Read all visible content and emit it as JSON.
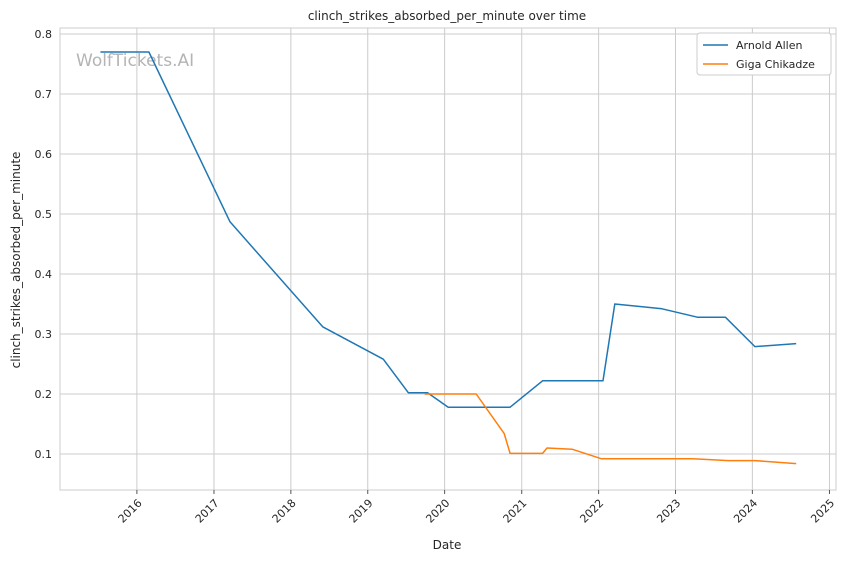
{
  "chart_data": {
    "type": "line",
    "title": "clinch_strikes_absorbed_per_minute over time",
    "xlabel": "Date",
    "ylabel": "clinch_strikes_absorbed_per_minute",
    "watermark": "WolfTickets.AI",
    "xlim": [
      "2015-01-01",
      "2025-02-01"
    ],
    "ylim": [
      0.04,
      0.81
    ],
    "x_ticks": [
      "2016",
      "2017",
      "2018",
      "2019",
      "2020",
      "2021",
      "2022",
      "2023",
      "2024",
      "2025"
    ],
    "y_ticks": [
      "0.1",
      "0.2",
      "0.3",
      "0.4",
      "0.5",
      "0.6",
      "0.7",
      "0.8"
    ],
    "grid": true,
    "legend_position": "top-right",
    "series": [
      {
        "name": "Arnold Allen",
        "color": "#1f77b4",
        "points": [
          [
            "2015-07-12",
            0.77
          ],
          [
            "2016-02-27",
            0.77
          ],
          [
            "2017-03-18",
            0.487
          ],
          [
            "2018-06-01",
            0.312
          ],
          [
            "2019-03-16",
            0.258
          ],
          [
            "2019-07-13",
            0.202
          ],
          [
            "2019-10-12",
            0.202
          ],
          [
            "2020-01-18",
            0.178
          ],
          [
            "2020-11-07",
            0.178
          ],
          [
            "2021-04-10",
            0.222
          ],
          [
            "2022-01-22",
            0.222
          ],
          [
            "2022-03-19",
            0.35
          ],
          [
            "2022-10-29",
            0.342
          ],
          [
            "2023-04-15",
            0.328
          ],
          [
            "2023-08-26",
            0.328
          ],
          [
            "2024-01-13",
            0.279
          ],
          [
            "2024-07-27",
            0.284
          ]
        ]
      },
      {
        "name": "Giga Chikadze",
        "color": "#ff7f0e",
        "points": [
          [
            "2019-09-28",
            0.2
          ],
          [
            "2020-05-30",
            0.2
          ],
          [
            "2020-10-10",
            0.134
          ],
          [
            "2020-11-07",
            0.101
          ],
          [
            "2021-04-10",
            0.101
          ],
          [
            "2021-05-01",
            0.11
          ],
          [
            "2021-08-28",
            0.108
          ],
          [
            "2022-01-15",
            0.092
          ],
          [
            "2023-03-25",
            0.092
          ],
          [
            "2023-09-09",
            0.089
          ],
          [
            "2024-01-13",
            0.089
          ],
          [
            "2024-07-27",
            0.084
          ]
        ]
      }
    ]
  }
}
